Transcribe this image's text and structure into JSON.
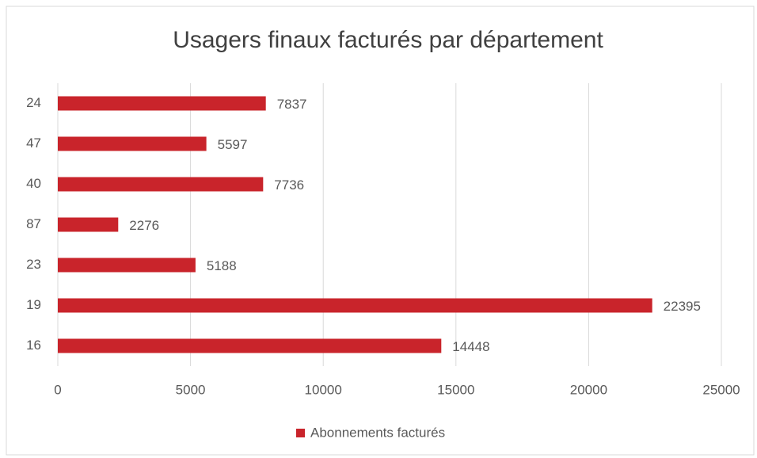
{
  "chart_data": {
    "type": "bar",
    "orientation": "horizontal",
    "title": "Usagers finaux facturés par département",
    "categories": [
      "24",
      "47",
      "40",
      "87",
      "23",
      "19",
      "16"
    ],
    "series": [
      {
        "name": "Abonnements facturés",
        "color": "#c9242b",
        "values": [
          7837,
          5597,
          7736,
          2276,
          5188,
          22395,
          14448
        ]
      }
    ],
    "xlim": [
      0,
      25000
    ],
    "xticks": [
      0,
      5000,
      10000,
      15000,
      20000,
      25000
    ],
    "grid": true,
    "legend": "bottom"
  }
}
